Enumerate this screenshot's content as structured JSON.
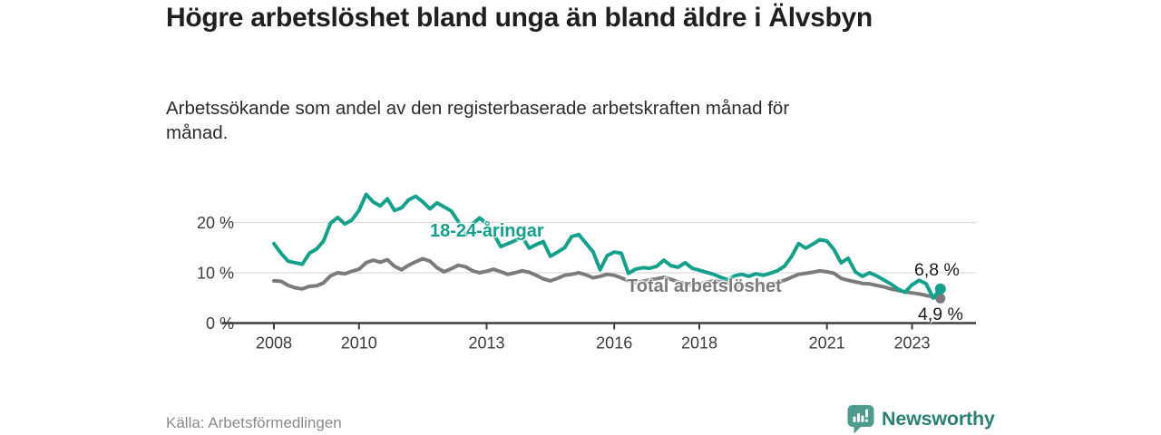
{
  "colors": {
    "young": "#14A08B",
    "total": "#7B7B7B",
    "axis": "#3F3F3F",
    "axis_text": "#3C3C3C",
    "grid": "#DBDBDB",
    "title": "#1F1F1F",
    "subtitle": "#2B2B2B",
    "source": "#8A8A8A",
    "brand_icon": "#4D9B8F",
    "brand_text": "#2B8074"
  },
  "footer": {
    "source": "Källa: Arbetsförmedlingen",
    "brand": "Newsworthy"
  },
  "chart_data": {
    "type": "line",
    "title": "Högre arbetslöshet bland unga än bland äldre i Älvsbyn",
    "subtitle": "Arbetssökande som andel av den registerbaserade arbetskraften månad för månad.",
    "source": "Källa: Arbetsförmedlingen",
    "unit": "%",
    "grid": true,
    "legend": "inline-labels",
    "x_start": 2008,
    "x_step_months": 2,
    "x_ticks": [
      2008,
      2010,
      2013,
      2016,
      2018,
      2021,
      2023
    ],
    "y_ticks": [
      {
        "value": 0,
        "label": "0 %"
      },
      {
        "value": 10,
        "label": "10 %"
      },
      {
        "value": 20,
        "label": "20 %"
      }
    ],
    "ylim": [
      0,
      28
    ],
    "series": [
      {
        "id": "young",
        "name": "18-24-åringar",
        "color": "#14A08B",
        "end_label": "6,8 %",
        "last_value": 6.8,
        "values": [
          15.8,
          13.9,
          12.3,
          12.0,
          11.7,
          13.9,
          14.7,
          16.3,
          19.9,
          21.0,
          19.7,
          20.5,
          22.4,
          25.6,
          24.1,
          23.3,
          24.7,
          22.4,
          22.9,
          24.5,
          25.2,
          24.1,
          22.7,
          23.9,
          23.1,
          22.3,
          20.2,
          17.4,
          19.7,
          20.9,
          19.8,
          17.7,
          15.2,
          15.8,
          16.4,
          17.2,
          14.9,
          15.6,
          16.2,
          13.3,
          14.1,
          15.0,
          17.2,
          17.6,
          15.9,
          14.2,
          10.6,
          13.4,
          14.1,
          13.9,
          9.9,
          10.7,
          11.0,
          10.9,
          11.3,
          12.5,
          11.4,
          11.1,
          12.0,
          10.9,
          10.5,
          10.1,
          9.7,
          9.1,
          8.6,
          9.4,
          9.7,
          9.3,
          9.8,
          9.5,
          9.9,
          10.4,
          11.3,
          13.2,
          15.8,
          14.9,
          15.7,
          16.6,
          16.3,
          14.6,
          12.0,
          12.9,
          10.2,
          9.3,
          10.0,
          9.4,
          8.6,
          7.8,
          6.8,
          6.1,
          7.6,
          8.5,
          7.8,
          5.0,
          6.8
        ]
      },
      {
        "id": "total",
        "name": "Total arbetslöshet",
        "color": "#7B7B7B",
        "end_label": "4,9 %",
        "last_value": 4.9,
        "values": [
          8.4,
          8.3,
          7.5,
          7.0,
          6.8,
          7.3,
          7.4,
          8.0,
          9.4,
          10.0,
          9.8,
          10.3,
          10.7,
          12.0,
          12.5,
          12.1,
          12.6,
          11.3,
          10.6,
          11.5,
          12.2,
          12.8,
          12.3,
          11.0,
          10.2,
          10.8,
          11.5,
          11.2,
          10.4,
          10.0,
          10.3,
          10.7,
          10.2,
          9.7,
          10.0,
          10.4,
          10.1,
          9.5,
          8.8,
          8.4,
          8.9,
          9.5,
          9.7,
          10.0,
          9.6,
          9.0,
          9.3,
          9.7,
          9.5,
          9.0,
          8.4,
          8.0,
          8.3,
          8.6,
          8.8,
          9.1,
          8.7,
          8.2,
          7.8,
          7.5,
          7.7,
          8.1,
          8.4,
          8.2,
          7.8,
          7.5,
          7.3,
          7.6,
          7.8,
          7.5,
          7.7,
          8.1,
          8.5,
          9.1,
          9.7,
          9.9,
          10.1,
          10.4,
          10.2,
          9.9,
          8.9,
          8.5,
          8.2,
          7.9,
          7.8,
          7.5,
          7.2,
          6.8,
          6.5,
          6.2,
          6.0,
          5.8,
          5.5,
          5.2,
          4.9
        ]
      }
    ]
  }
}
